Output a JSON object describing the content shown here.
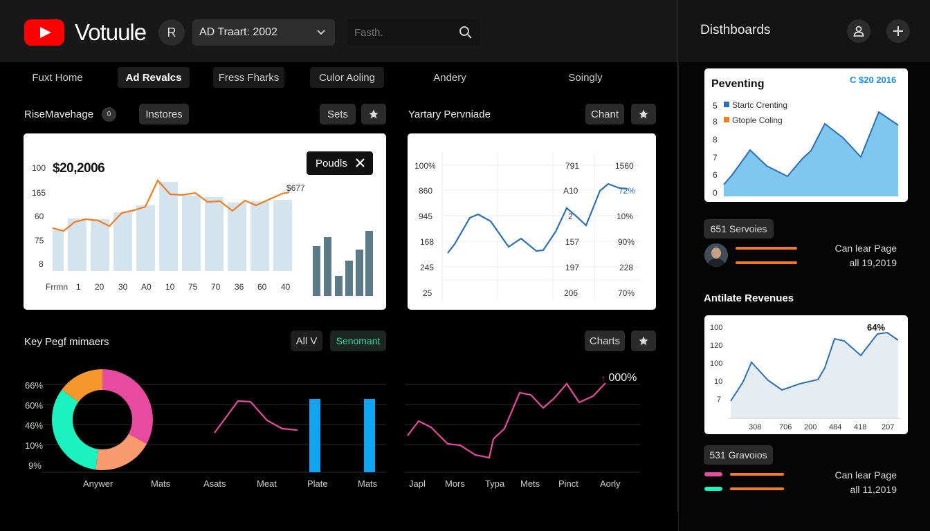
{
  "header": {
    "brand": "Votuule",
    "account_letter": "R",
    "dropdown_value": "AD Traart: 2002",
    "search_placeholder": "Fasth."
  },
  "right_header": {
    "title": "Disthboards"
  },
  "tabs": [
    {
      "label": "Fuxt Home"
    },
    {
      "label": "Ad Revalcs"
    },
    {
      "label": "Fress Fharks"
    },
    {
      "label": "Culor Aoling"
    },
    {
      "label": "Andery"
    },
    {
      "label": "Soingly"
    }
  ],
  "panel1": {
    "title": "RiseMavehage",
    "badge": "0",
    "btn_instores": "Instores",
    "btn_sets": "Sets",
    "value": "$20,2006",
    "popup_label": "Poudls",
    "peak_label": "$677",
    "y_labels": [
      "100",
      "165",
      "60",
      "75",
      "8"
    ],
    "x_first": "Frrmn",
    "x_labels": [
      "1",
      "20",
      "30",
      "A0",
      "10",
      "75",
      "70",
      "36",
      "60",
      "40"
    ]
  },
  "panel2": {
    "title": "Yartary Pervniade",
    "btn_chant": "Chant",
    "col1": [
      "100%",
      "860",
      "945",
      "168",
      "245",
      "25"
    ],
    "col2": [
      "791",
      "A10",
      "2",
      "157",
      "197",
      "206"
    ],
    "col3": [
      "1560",
      "72%",
      "10%",
      "90%",
      "228",
      "70%"
    ]
  },
  "panel3": {
    "title": "Key Pegf mimaers",
    "btn_all": "All V",
    "btn_senomant": "Senomant",
    "y_labels": [
      "66%",
      "60%",
      "46%",
      "10%",
      "9%"
    ],
    "x_labels": [
      "Anywer",
      "Mats",
      "Asats",
      "Meat",
      "Plate",
      "Mats"
    ]
  },
  "panel4": {
    "btn_charts": "Charts",
    "value": "000%",
    "x_labels": [
      "Japl",
      "Mors",
      "Typa",
      "Mets",
      "Pinct",
      "Aorly"
    ]
  },
  "right": {
    "card1": {
      "title": "Peventing",
      "value": "$20 2016",
      "legend": [
        "Startc Crenting",
        "Gtople Coling"
      ],
      "y_labels": [
        "5",
        "8",
        "8",
        "7",
        "6",
        "0"
      ]
    },
    "services_btn": "651 Servoies",
    "page_row1": {
      "line1": "Can lear Page",
      "line2": "all 19,2019"
    },
    "revenues_title": "Antilate Revenues",
    "card2": {
      "value": "64%",
      "y_labels": [
        "100",
        "120",
        "100",
        "10",
        "7"
      ],
      "x_labels": [
        "308",
        "706",
        "200",
        "484",
        "418",
        "207"
      ]
    },
    "gravoios_btn": "531 Gravoios",
    "page_row2": {
      "line1": "Can lear Page",
      "line2": "all 11,2019"
    }
  },
  "colors": {
    "brand_red": "#ff0000",
    "orange": "#f07c1e",
    "pink": "#e84aa0",
    "teal": "#1cf2c0",
    "blue": "#11a4f2",
    "line_blue": "#2a6fb8"
  }
}
